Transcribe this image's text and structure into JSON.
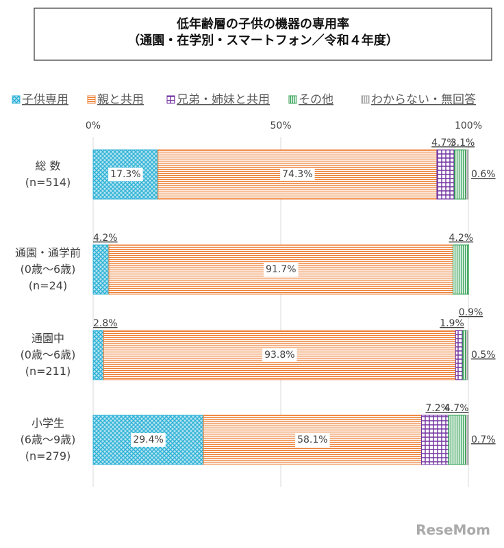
{
  "chart_data": {
    "type": "stacked_bar_horizontal",
    "title": "低年齢層の子供の機器の専用率\n（通園・在学別・スマートフォン／令和４年度）",
    "categories": [
      "総 数\n(n=514)",
      "通園・通学前\n(0歳～6歳)\n(n=24)",
      "通園中\n(0歳～6歳)\n(n=211)",
      "小学生\n(6歳～9歳)\n(n=279)"
    ],
    "xlim": [
      0,
      100
    ],
    "xticks": [
      {
        "value": 0,
        "label": "0%"
      },
      {
        "value": 50,
        "label": "50%"
      },
      {
        "value": 100,
        "label": "100%"
      }
    ],
    "grid": true,
    "legend": "top",
    "series": [
      {
        "name": "子供専用",
        "color": "#2fb2d6",
        "pattern": "crosshatch",
        "values": [
          17.3,
          4.2,
          2.8,
          29.4
        ],
        "value_labels": [
          "17.3%",
          "4.2%",
          "2.8%",
          "29.4%"
        ]
      },
      {
        "name": "親と共用",
        "color": "#ed7d31",
        "pattern": "horizontal",
        "values": [
          74.3,
          91.7,
          93.8,
          58.1
        ],
        "value_labels": [
          "74.3%",
          "91.7%",
          "93.8%",
          "58.1%"
        ]
      },
      {
        "name": "兄弟・姉妹と共用",
        "color": "#7030a0",
        "pattern": "grid",
        "values": [
          4.7,
          0,
          1.9,
          7.2
        ],
        "value_labels": [
          "4.7%",
          null,
          "1.9%",
          "7.2%"
        ]
      },
      {
        "name": "その他",
        "color": "#2e9e4f",
        "pattern": "vertical",
        "values": [
          3.1,
          4.2,
          0.9,
          4.7
        ],
        "value_labels": [
          "3.1%",
          "4.2%",
          "0.9%",
          "4.7%"
        ]
      },
      {
        "name": "わからない・無回答",
        "color": "#a6a6a6",
        "pattern": "vertical",
        "values": [
          0.6,
          0,
          0.5,
          0.7
        ],
        "value_labels": [
          "0.6%",
          null,
          "0.5%",
          "0.7%"
        ]
      }
    ],
    "source_logo": "ReseMom"
  }
}
